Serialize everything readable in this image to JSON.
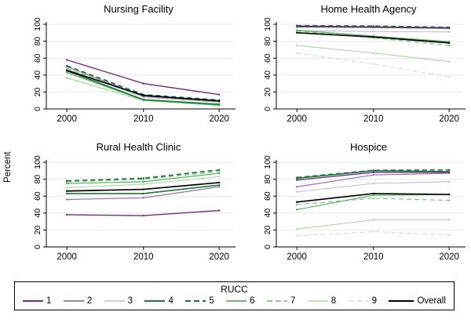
{
  "figure": {
    "ylabel": "Percent",
    "legend": {
      "title": "RUCC",
      "entries": [
        {
          "label": "1",
          "color": "#762a83",
          "dash": false,
          "width": 1.6
        },
        {
          "label": "2",
          "color": "#9970ab",
          "dash": false,
          "width": 1.4
        },
        {
          "label": "3",
          "color": "#c9b8d6",
          "dash": false,
          "width": 1.3
        },
        {
          "label": "4",
          "color": "#1b7837",
          "dash": false,
          "width": 1.8
        },
        {
          "label": "5",
          "color": "#1b7837",
          "dash": true,
          "width": 1.8
        },
        {
          "label": "6",
          "color": "#5aae61",
          "dash": false,
          "width": 1.4
        },
        {
          "label": "7",
          "color": "#7cc47f",
          "dash": true,
          "width": 1.4
        },
        {
          "label": "8",
          "color": "#a6dba0",
          "dash": false,
          "width": 1.3
        },
        {
          "label": "9",
          "color": "#c7e9c0",
          "dash": true,
          "width": 1.3
        },
        {
          "label": "Overall",
          "color": "#000000",
          "dash": false,
          "width": 1.8
        }
      ]
    }
  },
  "chart_data": [
    {
      "type": "line",
      "title": "Nursing Facility",
      "x": [
        2000,
        2010,
        2020
      ],
      "xlabel": "",
      "ylabel": "Percent",
      "ylim": [
        0,
        100
      ],
      "yticks": [
        0,
        20,
        40,
        60,
        80,
        100
      ],
      "grid": true,
      "series": [
        {
          "name": "RUCC 3",
          "color": "#c9b8d6",
          "dash": false,
          "width": 1.1,
          "values": [
            47,
            14,
            8
          ]
        },
        {
          "name": "RUCC 9",
          "color": "#c7e9c0",
          "dash": true,
          "width": 1.1,
          "values": [
            36,
            9.5,
            5.5
          ]
        },
        {
          "name": "RUCC 8",
          "color": "#a6dba0",
          "dash": false,
          "width": 1.1,
          "values": [
            37,
            10,
            4
          ]
        },
        {
          "name": "RUCC 7",
          "color": "#7cc47f",
          "dash": true,
          "width": 1.2,
          "values": [
            48,
            14.5,
            8
          ]
        },
        {
          "name": "RUCC 6",
          "color": "#5aae61",
          "dash": false,
          "width": 1.2,
          "values": [
            43,
            10.5,
            4.5
          ]
        },
        {
          "name": "RUCC 2",
          "color": "#9970ab",
          "dash": false,
          "width": 1.2,
          "values": [
            50,
            15,
            9
          ]
        },
        {
          "name": "RUCC 5",
          "color": "#1b7837",
          "dash": true,
          "width": 1.6,
          "values": [
            51,
            17,
            10.5
          ]
        },
        {
          "name": "RUCC 4",
          "color": "#1b7837",
          "dash": false,
          "width": 1.6,
          "values": [
            45,
            11,
            5.5
          ]
        },
        {
          "name": "RUCC 1",
          "color": "#762a83",
          "dash": false,
          "width": 1.4,
          "values": [
            58,
            30,
            17
          ]
        },
        {
          "name": "Overall",
          "color": "#000000",
          "dash": false,
          "width": 1.7,
          "values": [
            45.5,
            16,
            9.5
          ]
        }
      ]
    },
    {
      "type": "line",
      "title": "Home Health Agency",
      "x": [
        2000,
        2010,
        2020
      ],
      "xlabel": "",
      "ylabel": "Percent",
      "ylim": [
        0,
        100
      ],
      "yticks": [
        0,
        20,
        40,
        60,
        80,
        100
      ],
      "grid": true,
      "series": [
        {
          "name": "RUCC 3",
          "color": "#c9b8d6",
          "dash": false,
          "width": 1.1,
          "values": [
            92.5,
            91.5,
            91
          ]
        },
        {
          "name": "RUCC 9",
          "color": "#c7e9c0",
          "dash": true,
          "width": 1.1,
          "values": [
            66,
            53,
            38
          ]
        },
        {
          "name": "RUCC 8",
          "color": "#a6dba0",
          "dash": false,
          "width": 1.1,
          "values": [
            75,
            66,
            56
          ]
        },
        {
          "name": "RUCC 7",
          "color": "#7cc47f",
          "dash": true,
          "width": 1.2,
          "values": [
            92,
            84,
            75
          ]
        },
        {
          "name": "RUCC 6",
          "color": "#5aae61",
          "dash": false,
          "width": 1.2,
          "values": [
            93,
            86,
            79.5
          ]
        },
        {
          "name": "RUCC 2",
          "color": "#9970ab",
          "dash": false,
          "width": 1.2,
          "values": [
            97.5,
            96.5,
            95
          ]
        },
        {
          "name": "RUCC 5",
          "color": "#1b7837",
          "dash": true,
          "width": 1.6,
          "values": [
            98.5,
            98,
            96.5
          ]
        },
        {
          "name": "RUCC 4",
          "color": "#1b7837",
          "dash": false,
          "width": 1.6,
          "values": [
            97,
            96.5,
            95.5
          ]
        },
        {
          "name": "RUCC 1",
          "color": "#762a83",
          "dash": false,
          "width": 1.4,
          "values": [
            98,
            97,
            96
          ]
        },
        {
          "name": "Overall",
          "color": "#000000",
          "dash": false,
          "width": 1.7,
          "values": [
            90,
            85,
            78
          ]
        }
      ]
    },
    {
      "type": "line",
      "title": "Rural Health Clinic",
      "x": [
        2000,
        2010,
        2020
      ],
      "xlabel": "",
      "ylabel": "Percent",
      "ylim": [
        0,
        100
      ],
      "yticks": [
        0,
        20,
        40,
        60,
        80,
        100
      ],
      "grid": true,
      "series": [
        {
          "name": "RUCC 9",
          "color": "#c7e9c0",
          "dash": true,
          "width": 1.1,
          "values": [
            78,
            82,
            91
          ]
        },
        {
          "name": "RUCC 8",
          "color": "#a6dba0",
          "dash": false,
          "width": 1.1,
          "values": [
            70,
            74,
            83
          ]
        },
        {
          "name": "RUCC 7",
          "color": "#7cc47f",
          "dash": true,
          "width": 1.2,
          "values": [
            77,
            80,
            89
          ]
        },
        {
          "name": "RUCC 6",
          "color": "#5aae61",
          "dash": false,
          "width": 1.2,
          "values": [
            75,
            77,
            87
          ]
        },
        {
          "name": "RUCC 2",
          "color": "#9970ab",
          "dash": false,
          "width": 1.2,
          "values": [
            56,
            58,
            71
          ]
        },
        {
          "name": "RUCC 5",
          "color": "#1b7837",
          "dash": true,
          "width": 1.6,
          "values": [
            78,
            81,
            91
          ]
        },
        {
          "name": "RUCC 4",
          "color": "#1b7837",
          "dash": false,
          "width": 1.6,
          "values": [
            63,
            63,
            73
          ]
        },
        {
          "name": "RUCC 1",
          "color": "#762a83",
          "dash": false,
          "width": 1.4,
          "values": [
            38,
            37,
            43
          ]
        },
        {
          "name": "Overall",
          "color": "#000000",
          "dash": false,
          "width": 1.7,
          "values": [
            66,
            68,
            76
          ]
        }
      ]
    },
    {
      "type": "line",
      "title": "Hospice",
      "x": [
        2000,
        2010,
        2020
      ],
      "xlabel": "",
      "ylabel": "Percent",
      "ylim": [
        0,
        100
      ],
      "yticks": [
        0,
        20,
        40,
        60,
        80,
        100
      ],
      "grid": true,
      "series": [
        {
          "name": "RUCC 3",
          "color": "#c9b8d6",
          "dash": false,
          "width": 1.1,
          "values": [
            65,
            75,
            77
          ]
        },
        {
          "name": "RUCC 9",
          "color": "#c7e9c0",
          "dash": true,
          "width": 1.1,
          "values": [
            13,
            18,
            14
          ]
        },
        {
          "name": "RUCC 8",
          "color": "#a6dba0",
          "dash": false,
          "width": 1.1,
          "values": [
            21,
            32,
            32
          ]
        },
        {
          "name": "RUCC 7",
          "color": "#7cc47f",
          "dash": true,
          "width": 1.2,
          "values": [
            50,
            57.5,
            55
          ]
        },
        {
          "name": "RUCC 6",
          "color": "#5aae61",
          "dash": false,
          "width": 1.2,
          "values": [
            44,
            61,
            62
          ]
        },
        {
          "name": "RUCC 2",
          "color": "#9970ab",
          "dash": false,
          "width": 1.2,
          "values": [
            71,
            85,
            87
          ]
        },
        {
          "name": "RUCC 5",
          "color": "#1b7837",
          "dash": true,
          "width": 1.6,
          "values": [
            82,
            90.5,
            91
          ]
        },
        {
          "name": "RUCC 4",
          "color": "#1b7837",
          "dash": false,
          "width": 1.6,
          "values": [
            81,
            90,
            89
          ]
        },
        {
          "name": "RUCC 1",
          "color": "#762a83",
          "dash": false,
          "width": 1.4,
          "values": [
            79,
            88,
            88
          ]
        },
        {
          "name": "Overall",
          "color": "#000000",
          "dash": false,
          "width": 1.7,
          "values": [
            53,
            63,
            62
          ]
        }
      ]
    }
  ]
}
